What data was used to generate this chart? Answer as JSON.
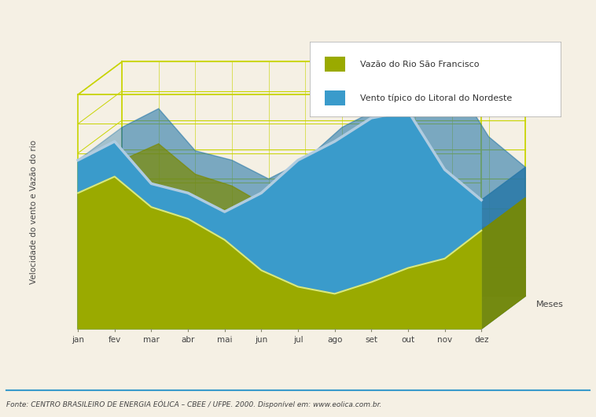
{
  "months": [
    "jan",
    "fev",
    "mar",
    "abr",
    "mai",
    "jun",
    "jul",
    "ago",
    "set",
    "out",
    "nov",
    "dez"
  ],
  "vazao": [
    58,
    65,
    52,
    47,
    38,
    25,
    18,
    15,
    20,
    26,
    30,
    42
  ],
  "vento": [
    72,
    80,
    62,
    58,
    50,
    58,
    72,
    80,
    90,
    93,
    68,
    55
  ],
  "vazao_color": "#9aaa00",
  "vento_color": "#3a9bcb",
  "vazao_dark": "#7a8a00",
  "vento_dark": "#2878a8",
  "vento_highlight": "#b0cce0",
  "vazao_highlight": "#d8e880",
  "bg_color": "#f5f0e4",
  "grid_color": "#c8d400",
  "grid_back_color": "#c8d400",
  "bottom_back_color": "#d0c8a0",
  "ylabel": "Velocidade do vento e Vazão do rio",
  "xlabel": "Meses",
  "legend1": "Vazão do Rio São Francisco",
  "legend2": "Vento típico do Litoral do Nordeste",
  "footnote": "Fonte: CENTRO BRASILEIRO DE ENERGIA EÓLICA – CBEE / UFPE. 2000. Disponível em: www.eolica.com.br.",
  "n_gridlines": 8,
  "ylim_max": 100
}
